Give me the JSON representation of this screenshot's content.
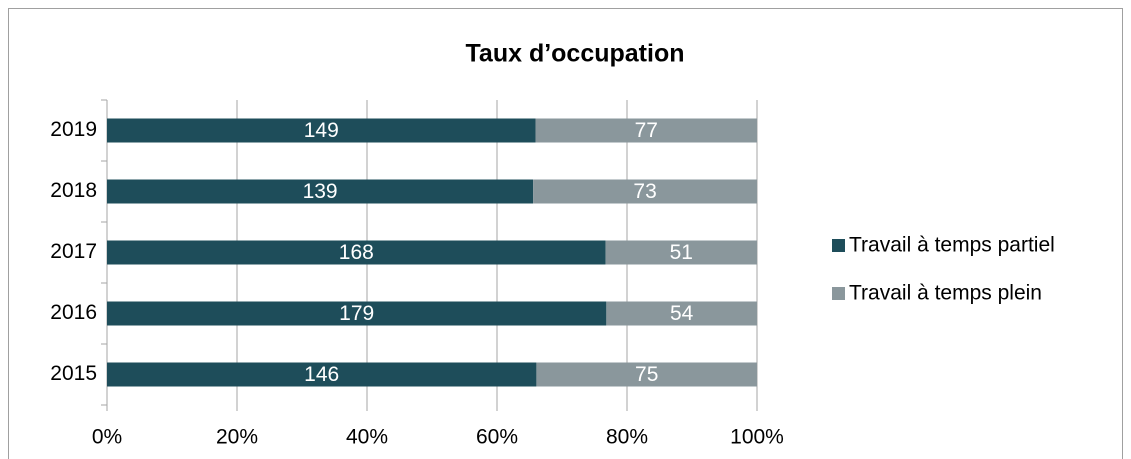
{
  "chart_data": {
    "type": "bar",
    "orientation": "horizontal",
    "stack": "percent",
    "title": "Taux d’occupation",
    "categories": [
      "2015",
      "2016",
      "2017",
      "2018",
      "2019"
    ],
    "series": [
      {
        "name": "Travail à temps partiel",
        "color": "#1e4d5a",
        "values": [
          146,
          179,
          168,
          139,
          149
        ]
      },
      {
        "name": "Travail à temps plein",
        "color": "#8a979c",
        "values": [
          75,
          54,
          51,
          73,
          77
        ]
      }
    ],
    "xlim": [
      0,
      100
    ],
    "xticks": [
      {
        "value": 0,
        "label": "0%"
      },
      {
        "value": 20,
        "label": "20%"
      },
      {
        "value": 40,
        "label": "40%"
      },
      {
        "value": 60,
        "label": "60%"
      },
      {
        "value": 80,
        "label": "80%"
      },
      {
        "value": 100,
        "label": "100%"
      }
    ],
    "grid": true,
    "legend": "right"
  }
}
